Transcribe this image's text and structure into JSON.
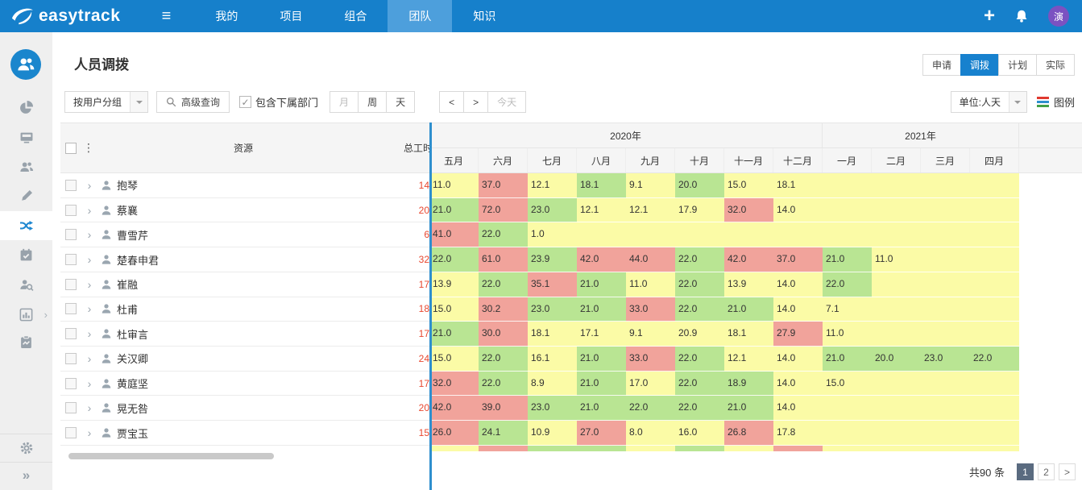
{
  "topbar": {
    "logo_text": "easytrack",
    "nav": [
      {
        "label": "我的",
        "active": false
      },
      {
        "label": "项目",
        "active": false
      },
      {
        "label": "组合",
        "active": false
      },
      {
        "label": "团队",
        "active": true
      },
      {
        "label": "知识",
        "active": false
      }
    ],
    "avatar_text": "演"
  },
  "sidebar": {
    "items": [
      {
        "icon": "pie-chart",
        "name": "dashboard"
      },
      {
        "icon": "monitor",
        "name": "workbench"
      },
      {
        "icon": "users",
        "name": "team"
      },
      {
        "icon": "brush",
        "name": "planning"
      },
      {
        "icon": "shuffle",
        "name": "resource-allocation",
        "active": true
      },
      {
        "icon": "calendar-check",
        "name": "schedule"
      },
      {
        "icon": "user-search",
        "name": "user-query"
      },
      {
        "icon": "bar-chart",
        "name": "reports",
        "expandable": true
      },
      {
        "icon": "clipboard",
        "name": "assessment"
      }
    ],
    "bottom_items": [
      {
        "icon": "gear",
        "name": "settings"
      },
      {
        "icon": "double-chevron-right",
        "name": "collapse-sidebar"
      }
    ]
  },
  "page": {
    "title": "人员调拨"
  },
  "toolbar": {
    "group_select": "按用户分组",
    "advanced_query": "高级查询",
    "include_sub_dept": "包含下属部门",
    "include_sub_dept_checked": true,
    "period_buttons": [
      {
        "label": "月",
        "disabled": true
      },
      {
        "label": "周",
        "disabled": false
      },
      {
        "label": "天",
        "disabled": false
      }
    ],
    "nav_buttons": [
      {
        "label": "<",
        "disabled": false
      },
      {
        "label": ">",
        "disabled": false
      },
      {
        "label": "今天",
        "disabled": true
      }
    ]
  },
  "view_tabs": [
    {
      "label": "申请",
      "active": false
    },
    {
      "label": "调拨",
      "active": true
    },
    {
      "label": "计划",
      "active": false
    },
    {
      "label": "实际",
      "active": false
    }
  ],
  "unit_select": {
    "value": "单位:人天"
  },
  "legend_label": "图例",
  "table": {
    "resource_header": "资源",
    "total_header": "总工时",
    "year_groups": [
      {
        "label": "2020年",
        "span": 8
      },
      {
        "label": "2021年",
        "span": 4
      }
    ],
    "months": [
      "五月",
      "六月",
      "七月",
      "八月",
      "九月",
      "十月",
      "十一月",
      "十二月",
      "一月",
      "二月",
      "三月",
      "四月"
    ],
    "rows": [
      {
        "name": "抱琴",
        "total": "14",
        "cells": [
          {
            "v": "11.0",
            "c": "y"
          },
          {
            "v": "37.0",
            "c": "r"
          },
          {
            "v": "12.1",
            "c": "y"
          },
          {
            "v": "18.1",
            "c": "g"
          },
          {
            "v": "9.1",
            "c": "y"
          },
          {
            "v": "20.0",
            "c": "g"
          },
          {
            "v": "15.0",
            "c": "y"
          },
          {
            "v": "18.1",
            "c": "y"
          },
          {
            "v": "",
            "c": "y"
          },
          {
            "v": "",
            "c": "y"
          },
          {
            "v": "",
            "c": "y"
          },
          {
            "v": "",
            "c": "y"
          }
        ]
      },
      {
        "name": "蔡襄",
        "total": "20",
        "cells": [
          {
            "v": "21.0",
            "c": "g"
          },
          {
            "v": "72.0",
            "c": "r"
          },
          {
            "v": "23.0",
            "c": "g"
          },
          {
            "v": "12.1",
            "c": "y"
          },
          {
            "v": "12.1",
            "c": "y"
          },
          {
            "v": "17.9",
            "c": "y"
          },
          {
            "v": "32.0",
            "c": "r"
          },
          {
            "v": "14.0",
            "c": "y"
          },
          {
            "v": "",
            "c": "y"
          },
          {
            "v": "",
            "c": "y"
          },
          {
            "v": "",
            "c": "y"
          },
          {
            "v": "",
            "c": "y"
          }
        ]
      },
      {
        "name": "曹雪芹",
        "total": "6",
        "cells": [
          {
            "v": "41.0",
            "c": "r"
          },
          {
            "v": "22.0",
            "c": "g"
          },
          {
            "v": "1.0",
            "c": "y"
          },
          {
            "v": "",
            "c": "y"
          },
          {
            "v": "",
            "c": "y"
          },
          {
            "v": "",
            "c": "y"
          },
          {
            "v": "",
            "c": "y"
          },
          {
            "v": "",
            "c": "y"
          },
          {
            "v": "",
            "c": "y"
          },
          {
            "v": "",
            "c": "y"
          },
          {
            "v": "",
            "c": "y"
          },
          {
            "v": "",
            "c": "y"
          }
        ]
      },
      {
        "name": "楚春申君",
        "total": "32",
        "cells": [
          {
            "v": "22.0",
            "c": "g"
          },
          {
            "v": "61.0",
            "c": "r"
          },
          {
            "v": "23.9",
            "c": "g"
          },
          {
            "v": "42.0",
            "c": "r"
          },
          {
            "v": "44.0",
            "c": "r"
          },
          {
            "v": "22.0",
            "c": "g"
          },
          {
            "v": "42.0",
            "c": "r"
          },
          {
            "v": "37.0",
            "c": "r"
          },
          {
            "v": "21.0",
            "c": "g"
          },
          {
            "v": "11.0",
            "c": "y"
          },
          {
            "v": "",
            "c": "y"
          },
          {
            "v": "",
            "c": "y"
          }
        ]
      },
      {
        "name": "崔融",
        "total": "17",
        "cells": [
          {
            "v": "13.9",
            "c": "y"
          },
          {
            "v": "22.0",
            "c": "g"
          },
          {
            "v": "35.1",
            "c": "r"
          },
          {
            "v": "21.0",
            "c": "g"
          },
          {
            "v": "11.0",
            "c": "y"
          },
          {
            "v": "22.0",
            "c": "g"
          },
          {
            "v": "13.9",
            "c": "y"
          },
          {
            "v": "14.0",
            "c": "y"
          },
          {
            "v": "22.0",
            "c": "g"
          },
          {
            "v": "",
            "c": "y"
          },
          {
            "v": "",
            "c": "y"
          },
          {
            "v": "",
            "c": "y"
          }
        ]
      },
      {
        "name": "杜甫",
        "total": "18",
        "cells": [
          {
            "v": "15.0",
            "c": "y"
          },
          {
            "v": "30.2",
            "c": "r"
          },
          {
            "v": "23.0",
            "c": "g"
          },
          {
            "v": "21.0",
            "c": "g"
          },
          {
            "v": "33.0",
            "c": "r"
          },
          {
            "v": "22.0",
            "c": "g"
          },
          {
            "v": "21.0",
            "c": "g"
          },
          {
            "v": "14.0",
            "c": "y"
          },
          {
            "v": "7.1",
            "c": "y"
          },
          {
            "v": "",
            "c": "y"
          },
          {
            "v": "",
            "c": "y"
          },
          {
            "v": "",
            "c": "y"
          }
        ]
      },
      {
        "name": "杜审言",
        "total": "17",
        "cells": [
          {
            "v": "21.0",
            "c": "g"
          },
          {
            "v": "30.0",
            "c": "r"
          },
          {
            "v": "18.1",
            "c": "y"
          },
          {
            "v": "17.1",
            "c": "y"
          },
          {
            "v": "9.1",
            "c": "y"
          },
          {
            "v": "20.9",
            "c": "y"
          },
          {
            "v": "18.1",
            "c": "y"
          },
          {
            "v": "27.9",
            "c": "r"
          },
          {
            "v": "11.0",
            "c": "y"
          },
          {
            "v": "",
            "c": "y"
          },
          {
            "v": "",
            "c": "y"
          },
          {
            "v": "",
            "c": "y"
          }
        ]
      },
      {
        "name": "关汉卿",
        "total": "24",
        "cells": [
          {
            "v": "15.0",
            "c": "y"
          },
          {
            "v": "22.0",
            "c": "g"
          },
          {
            "v": "16.1",
            "c": "y"
          },
          {
            "v": "21.0",
            "c": "g"
          },
          {
            "v": "33.0",
            "c": "r"
          },
          {
            "v": "22.0",
            "c": "g"
          },
          {
            "v": "12.1",
            "c": "y"
          },
          {
            "v": "14.0",
            "c": "y"
          },
          {
            "v": "21.0",
            "c": "g"
          },
          {
            "v": "20.0",
            "c": "g"
          },
          {
            "v": "23.0",
            "c": "g"
          },
          {
            "v": "22.0",
            "c": "g"
          }
        ]
      },
      {
        "name": "黄庭坚",
        "total": "17",
        "cells": [
          {
            "v": "32.0",
            "c": "r"
          },
          {
            "v": "22.0",
            "c": "g"
          },
          {
            "v": "8.9",
            "c": "y"
          },
          {
            "v": "21.0",
            "c": "g"
          },
          {
            "v": "17.0",
            "c": "y"
          },
          {
            "v": "22.0",
            "c": "g"
          },
          {
            "v": "18.9",
            "c": "g"
          },
          {
            "v": "14.0",
            "c": "y"
          },
          {
            "v": "15.0",
            "c": "y"
          },
          {
            "v": "",
            "c": "y"
          },
          {
            "v": "",
            "c": "y"
          },
          {
            "v": "",
            "c": "y"
          }
        ]
      },
      {
        "name": "晃无咎",
        "total": "20",
        "cells": [
          {
            "v": "42.0",
            "c": "r"
          },
          {
            "v": "39.0",
            "c": "r"
          },
          {
            "v": "23.0",
            "c": "g"
          },
          {
            "v": "21.0",
            "c": "g"
          },
          {
            "v": "22.0",
            "c": "g"
          },
          {
            "v": "22.0",
            "c": "g"
          },
          {
            "v": "21.0",
            "c": "g"
          },
          {
            "v": "14.0",
            "c": "y"
          },
          {
            "v": "",
            "c": "y"
          },
          {
            "v": "",
            "c": "y"
          },
          {
            "v": "",
            "c": "y"
          },
          {
            "v": "",
            "c": "y"
          }
        ]
      },
      {
        "name": "贾宝玉",
        "total": "15",
        "cells": [
          {
            "v": "26.0",
            "c": "r"
          },
          {
            "v": "24.1",
            "c": "g"
          },
          {
            "v": "10.9",
            "c": "y"
          },
          {
            "v": "27.0",
            "c": "r"
          },
          {
            "v": "8.0",
            "c": "y"
          },
          {
            "v": "16.0",
            "c": "y"
          },
          {
            "v": "26.8",
            "c": "r"
          },
          {
            "v": "17.8",
            "c": "y"
          },
          {
            "v": "",
            "c": "y"
          },
          {
            "v": "",
            "c": "y"
          },
          {
            "v": "",
            "c": "y"
          },
          {
            "v": "",
            "c": "y"
          }
        ]
      }
    ],
    "partial_row_colors": [
      "y",
      "r",
      "g",
      "g",
      "y",
      "g",
      "y",
      "r",
      "y",
      "y",
      "y",
      "y"
    ]
  },
  "pagination": {
    "total_text": "共90 条",
    "pages": [
      {
        "label": "1",
        "active": true
      },
      {
        "label": "2",
        "active": false
      }
    ],
    "next_label": ">"
  },
  "colors": {
    "yellow": "#fbfba6",
    "green": "#b9e593",
    "red": "#f1a39b",
    "divider_blue": "#2e8fce",
    "accent": "#1781ce",
    "topbar": "#1680cb",
    "legend_bars": [
      "#e0392f",
      "#2e8fce",
      "#43a047"
    ]
  }
}
